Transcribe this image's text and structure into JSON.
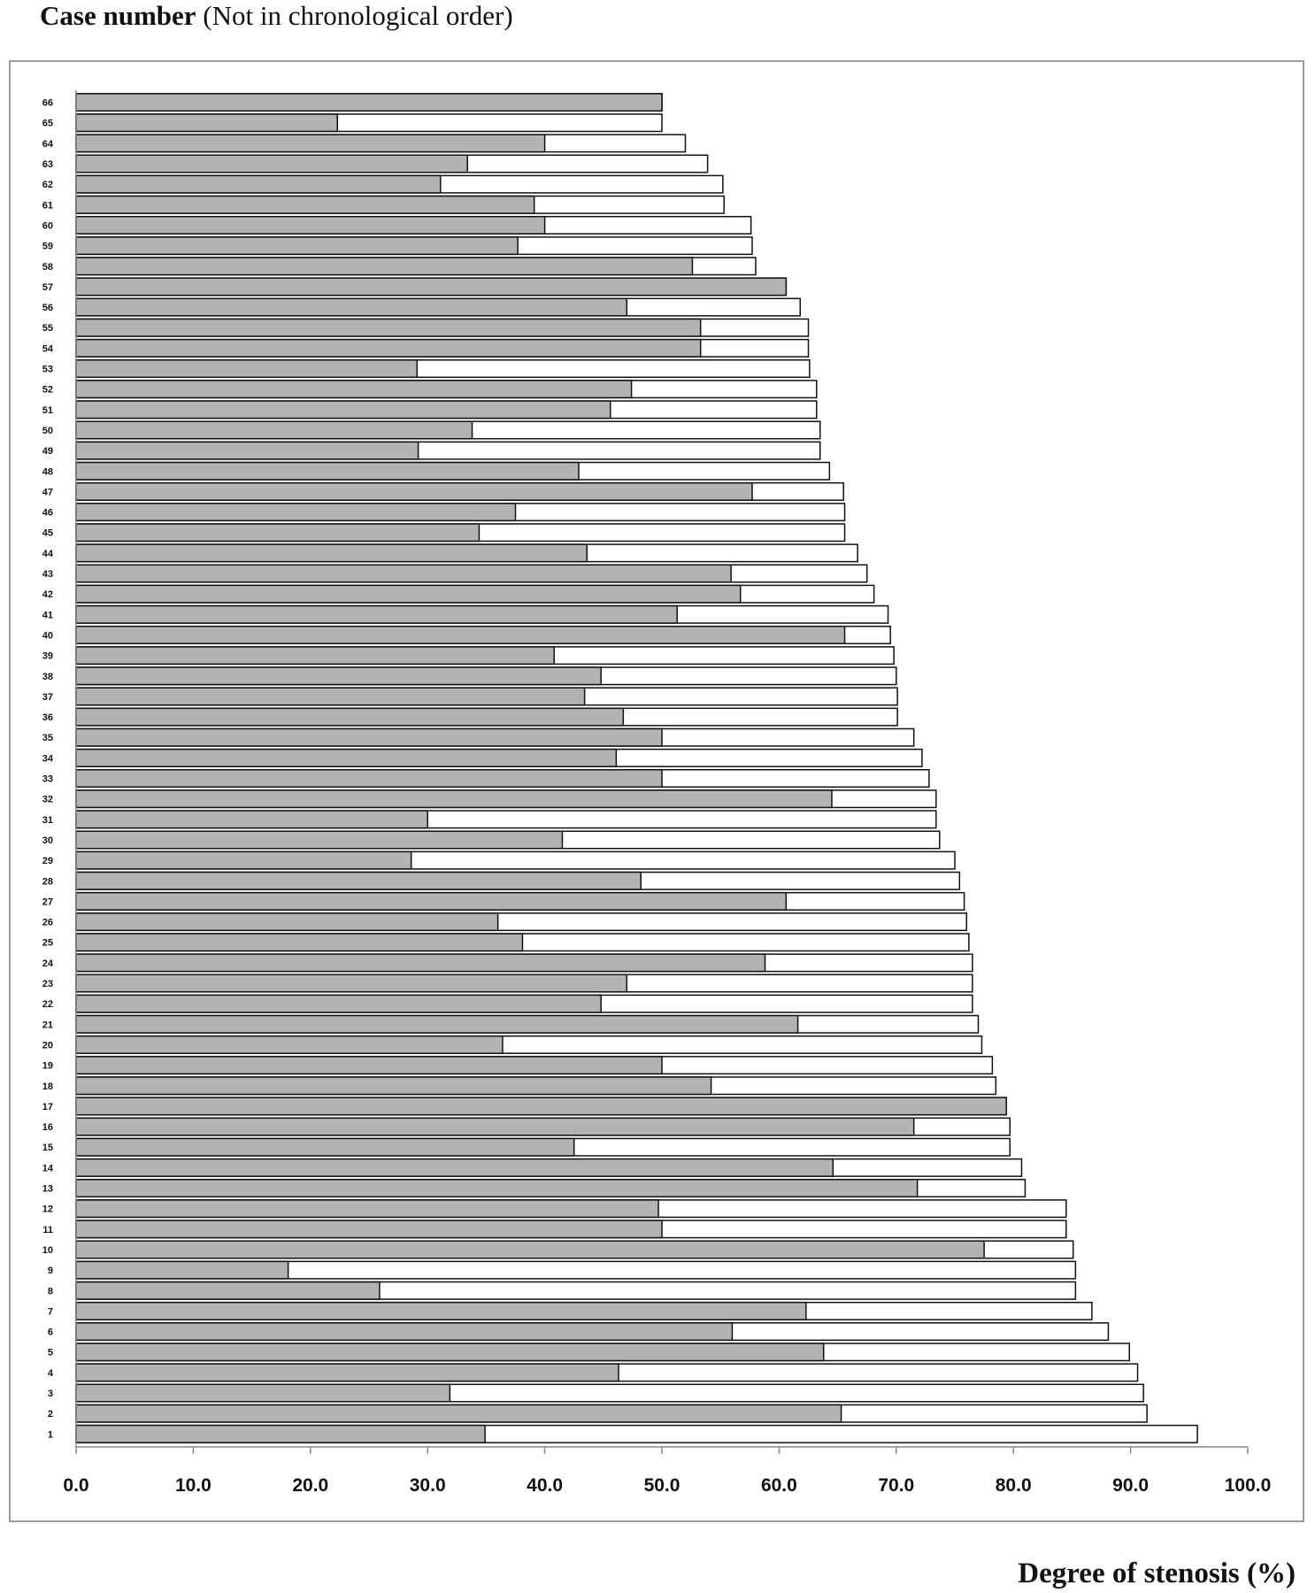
{
  "chart_data": {
    "type": "bar",
    "orientation": "horizontal",
    "stacked": false,
    "title_bold": "Case number",
    "title_rest": " (Not in chronological order)",
    "xlabel": "Degree of stenosis (%)",
    "xlim": [
      0,
      100
    ],
    "xticks": [
      "0.0",
      "10.0",
      "20.0",
      "30.0",
      "40.0",
      "50.0",
      "60.0",
      "70.0",
      "80.0",
      "90.0",
      "100.0"
    ],
    "grid": false,
    "legend": "none",
    "colors": {
      "inner": "#b3b3b3",
      "outer": "#ffffff",
      "stroke": "#111111"
    },
    "categories": [
      "66",
      "65",
      "64",
      "63",
      "62",
      "61",
      "60",
      "59",
      "58",
      "57",
      "56",
      "55",
      "54",
      "53",
      "52",
      "51",
      "50",
      "49",
      "48",
      "47",
      "46",
      "45",
      "44",
      "43",
      "42",
      "41",
      "40",
      "39",
      "38",
      "37",
      "36",
      "35",
      "34",
      "33",
      "32",
      "31",
      "30",
      "29",
      "28",
      "27",
      "26",
      "25",
      "24",
      "23",
      "22",
      "21",
      "20",
      "19",
      "18",
      "17",
      "16",
      "15",
      "14",
      "13",
      "12",
      "11",
      "10",
      "9",
      "8",
      "7",
      "6",
      "5",
      "4",
      "3",
      "2",
      "1"
    ],
    "series": [
      {
        "values": [
          50.0,
          22.3,
          40.0,
          33.4,
          31.1,
          39.1,
          40.0,
          37.7,
          52.6,
          60.6,
          47.0,
          53.3,
          53.3,
          29.1,
          47.4,
          45.6,
          33.8,
          29.2,
          42.9,
          57.7,
          37.5,
          34.4,
          43.6,
          55.9,
          56.7,
          51.3,
          65.6,
          40.8,
          44.8,
          43.4,
          46.7,
          50.0,
          46.1,
          50.0,
          64.5,
          30.0,
          41.5,
          28.6,
          48.2,
          60.6,
          36.0,
          38.1,
          58.8,
          47.0,
          44.8,
          61.6,
          36.4,
          50.0,
          54.2,
          79.4,
          71.5,
          42.5,
          64.6,
          71.8,
          49.7,
          50.0,
          77.5,
          18.1,
          25.9,
          62.3,
          56.0,
          63.8,
          46.3,
          31.9,
          65.3,
          34.9
        ]
      },
      {
        "values": [
          50.0,
          50.0,
          52.0,
          53.9,
          55.2,
          55.3,
          57.6,
          57.7,
          58.0,
          60.6,
          61.8,
          62.5,
          62.5,
          62.6,
          63.2,
          63.2,
          63.5,
          63.5,
          64.3,
          65.5,
          65.6,
          65.6,
          66.7,
          67.5,
          68.1,
          69.3,
          69.5,
          69.8,
          70.0,
          70.1,
          70.1,
          71.5,
          72.2,
          72.8,
          73.4,
          73.4,
          73.7,
          75.0,
          75.4,
          75.8,
          76.0,
          76.2,
          76.5,
          76.5,
          76.5,
          77.0,
          77.3,
          78.2,
          78.5,
          79.4,
          79.7,
          79.7,
          80.7,
          81.0,
          84.5,
          84.5,
          85.1,
          85.3,
          85.3,
          86.7,
          88.1,
          89.9,
          90.6,
          91.1,
          91.4,
          95.7
        ]
      }
    ]
  }
}
